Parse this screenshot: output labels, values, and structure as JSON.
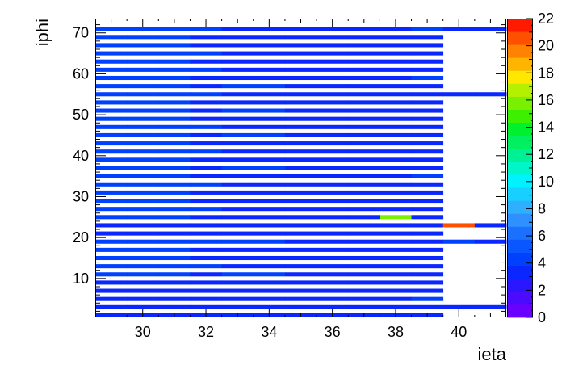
{
  "chart_data": {
    "type": "heatmap",
    "title": "",
    "xlabel": "ieta",
    "ylabel": "iphi",
    "xlim": [
      28.5,
      41.5
    ],
    "ylim": [
      0.5,
      73.5
    ],
    "x_ticks": [
      30,
      32,
      34,
      36,
      38,
      40
    ],
    "y_ticks": [
      10,
      20,
      30,
      40,
      50,
      60,
      70
    ],
    "palette_colors": [
      "#6a00ff",
      "#4b0bff",
      "#2a17ff",
      "#0a27ff",
      "#0040ff",
      "#0a56ff",
      "#1b70ff",
      "#2f90ff",
      "#2fb0ff",
      "#17d0ff",
      "#00f2ff",
      "#00f5c9",
      "#00f096",
      "#00f060",
      "#00f02e",
      "#3cf000",
      "#78f000",
      "#b4f000",
      "#ffe700",
      "#ffb500",
      "#ff8200",
      "#ff4f00",
      "#ff1a00"
    ],
    "z_range": [
      0,
      22
    ],
    "z_ticks": [
      0,
      2,
      4,
      6,
      8,
      10,
      12,
      14,
      16,
      18,
      20,
      22
    ],
    "odd_iphi_rows": [
      1,
      3,
      5,
      7,
      9,
      11,
      13,
      15,
      17,
      19,
      21,
      23,
      25,
      27,
      29,
      31,
      33,
      35,
      37,
      39,
      41,
      43,
      45,
      47,
      49,
      51,
      53,
      55,
      57,
      59,
      61,
      63,
      65,
      67,
      69,
      71
    ],
    "row_extent": {
      "default_x_max": 39.5,
      "full_width_rows": [
        3,
        19,
        23,
        55,
        71
      ],
      "full_width_x_max": 41.5
    },
    "default_value": 3,
    "elevated_cells": [
      {
        "ieta": 28.5,
        "ieta_end": 31.5,
        "iphi": [
          11,
          13,
          15,
          17,
          19,
          25,
          27,
          29,
          31,
          33,
          35,
          37,
          39,
          41,
          43,
          45,
          47,
          49,
          51,
          53,
          55,
          57,
          59,
          61,
          63,
          65,
          67,
          69,
          71
        ],
        "value": 4
      },
      {
        "ieta": 31.5,
        "ieta_end": 32.5,
        "iphi": [
          13,
          19,
          27,
          33,
          41,
          47,
          55,
          61,
          65,
          71
        ],
        "value": 4
      },
      {
        "ieta": 32.5,
        "ieta_end": 34.5,
        "iphi": [
          11,
          19,
          37,
          45,
          51,
          57
        ],
        "value": 4
      },
      {
        "ieta": 38.5,
        "ieta_end": 39.5,
        "iphi": [
          5,
          35,
          59,
          71
        ],
        "value": 4
      },
      {
        "ieta": 39.5,
        "ieta_end": 40.5,
        "iphi": [
          19
        ],
        "value": 4
      }
    ],
    "hot_cells": [
      {
        "ieta": 37.5,
        "ieta_end": 38.5,
        "iphi": 25,
        "value": 16
      },
      {
        "ieta": 39.5,
        "ieta_end": 40.5,
        "iphi": 23,
        "value": 21
      }
    ]
  }
}
